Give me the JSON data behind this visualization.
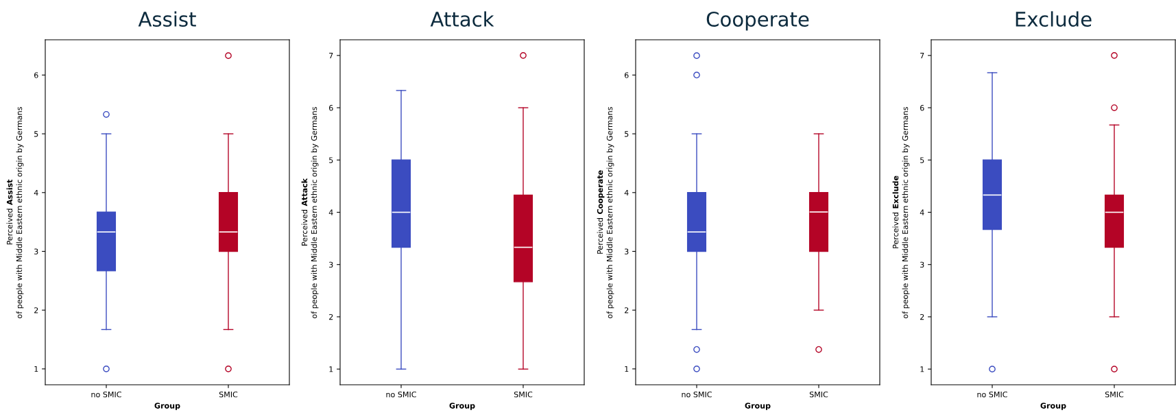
{
  "chart_data": [
    {
      "type": "box",
      "title": "Assist",
      "xlabel": "Group",
      "ylabel": "Perceived Assist\nof people with Middle Eastern ethnic origin by Germans",
      "categories": [
        "no SMIC",
        "SMIC"
      ],
      "colors": [
        "#3b4cc0",
        "#b40426"
      ],
      "ylim": [
        0.73,
        6.6
      ],
      "yticks": [
        1,
        2,
        3,
        4,
        5,
        6
      ],
      "boxes": [
        {
          "low": 1.67,
          "q1": 2.67,
          "median": 3.33,
          "q3": 3.67,
          "high": 5,
          "outliers": [
            5.33,
            1
          ]
        },
        {
          "low": 1.67,
          "q1": 3,
          "median": 3.33,
          "q3": 4,
          "high": 5,
          "outliers": [
            6.33,
            1
          ]
        }
      ]
    },
    {
      "type": "box",
      "title": "Attack",
      "xlabel": "Group",
      "ylabel": "Perceived Attack\nof people with Middle Eastern ethnic origin by Germans",
      "categories": [
        "no SMIC",
        "SMIC"
      ],
      "colors": [
        "#3b4cc0",
        "#b40426"
      ],
      "ylim": [
        0.7,
        7.3
      ],
      "yticks": [
        1,
        2,
        3,
        4,
        5,
        6,
        7
      ],
      "boxes": [
        {
          "low": 1,
          "q1": 3.33,
          "median": 4,
          "q3": 5,
          "high": 6.33
        },
        {
          "low": 1,
          "q1": 2.67,
          "median": 3.33,
          "q3": 4.33,
          "high": 6,
          "outliers": [
            7
          ]
        }
      ]
    },
    {
      "type": "box",
      "title": "Cooperate",
      "xlabel": "Group",
      "ylabel": "Perceived Cooperate\nof people with Middle Eastern ethnic origin by Germans",
      "categories": [
        "no SMIC",
        "SMIC"
      ],
      "colors": [
        "#3b4cc0",
        "#b40426"
      ],
      "ylim": [
        0.73,
        6.6
      ],
      "yticks": [
        1,
        2,
        3,
        4,
        5,
        6
      ],
      "boxes": [
        {
          "low": 1.67,
          "q1": 3,
          "median": 3.33,
          "q3": 4,
          "high": 5,
          "outliers": [
            6.33,
            6,
            1.33,
            1
          ]
        },
        {
          "low": 2,
          "q1": 3,
          "median": 3.67,
          "q3": 4,
          "high": 5,
          "outliers": [
            1.33
          ]
        }
      ]
    },
    {
      "type": "box",
      "title": "Exclude",
      "xlabel": "Group",
      "ylabel": "Perceived Exclude\nof people with Middle Eastern ethnic origin by Germans",
      "categories": [
        "no SMIC",
        "SMIC"
      ],
      "colors": [
        "#3b4cc0",
        "#b40426"
      ],
      "ylim": [
        0.7,
        7.3
      ],
      "yticks": [
        1,
        2,
        3,
        4,
        5,
        6,
        7
      ],
      "boxes": [
        {
          "low": 2,
          "q1": 3.67,
          "median": 4.33,
          "q3": 5,
          "high": 6.67,
          "outliers": [
            1
          ]
        },
        {
          "low": 2,
          "q1": 3.33,
          "median": 4,
          "q3": 4.33,
          "high": 5.67,
          "outliers": [
            7,
            6,
            1
          ]
        }
      ]
    }
  ]
}
